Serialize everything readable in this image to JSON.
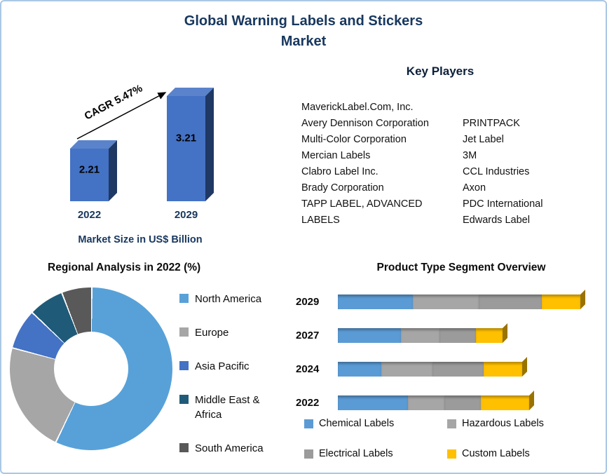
{
  "title": "Global Warning Labels and Stickers Market",
  "key_players": {
    "heading": "Key Players",
    "column1": [
      "MaverickLabel.Com, Inc.",
      "Avery Dennison Corporation",
      "Multi-Color Corporation",
      "Mercian Labels",
      "Clabro Label Inc.",
      "Brady Corporation",
      "TAPP LABEL, ADVANCED LABELS"
    ],
    "column2": [
      "PRINTPACK",
      "Jet Label",
      "3M",
      "CCL Industries",
      "Axon",
      "PDC International",
      "Edwards Label"
    ]
  },
  "chart_data": [
    {
      "id": "market_size",
      "type": "bar",
      "categories": [
        "2022",
        "2029"
      ],
      "values": [
        2.21,
        3.21
      ],
      "annotation": "CAGR 5.47%",
      "xlabel": "Market Size in US$ Billion",
      "bar_color": "#4472C4"
    },
    {
      "id": "regional_analysis",
      "type": "pie",
      "donut": true,
      "title": "Regional Analysis in 2022 (%)",
      "labels": [
        "North America",
        "Europe",
        "Asia Pacific",
        "Middle East & Africa",
        "South America"
      ],
      "values": [
        57,
        22,
        8,
        7,
        6
      ],
      "colors": [
        "#58A1D8",
        "#A6A6A6",
        "#4472C4",
        "#1F5B78",
        "#595959"
      ],
      "legend_position": "right"
    },
    {
      "id": "product_type_segment",
      "type": "bar",
      "orientation": "horizontal",
      "stacked": true,
      "title": "Product Type Segment Overview",
      "categories": [
        "2029",
        "2027",
        "2024",
        "2022"
      ],
      "series": [
        {
          "name": "Chemical Labels",
          "color": "#5B9BD5",
          "values": [
            31,
            26,
            18,
            29
          ]
        },
        {
          "name": "Hazardous Labels",
          "color": "#A6A6A6",
          "values": [
            27,
            16,
            21,
            15
          ]
        },
        {
          "name": "Electrical Labels",
          "color": "#9B9B9B",
          "values": [
            26,
            15,
            21,
            15
          ]
        },
        {
          "name": "Custom Labels",
          "color": "#FFC000",
          "values": [
            16,
            11,
            16,
            20
          ]
        }
      ]
    }
  ]
}
